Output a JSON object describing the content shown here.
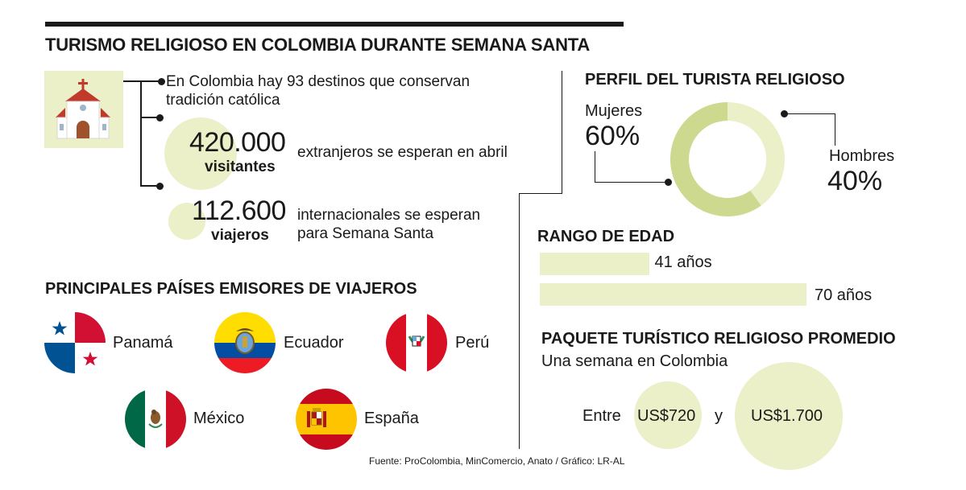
{
  "header": {
    "title": "TURISMO RELIGIOSO EN COLOMBIA DURANTE SEMANA SANTA"
  },
  "intro": {
    "fact_text": "En Colombia hay 93 destinos que conservan tradición católica",
    "stat1_value": "420.000",
    "stat1_unit": "visitantes",
    "stat1_desc": "extranjeros se esperan en abril",
    "stat2_value": "112.600",
    "stat2_unit": "viajeros",
    "stat2_desc": "internacionales se esperan para Semana Santa"
  },
  "countries": {
    "heading": "PRINCIPALES PAÍSES EMISORES DE VIAJEROS",
    "items": [
      {
        "name": "Panamá",
        "icon": "panama-flag-icon"
      },
      {
        "name": "Ecuador",
        "icon": "ecuador-flag-icon"
      },
      {
        "name": "Perú",
        "icon": "peru-flag-icon"
      },
      {
        "name": "México",
        "icon": "mexico-flag-icon"
      },
      {
        "name": "España",
        "icon": "spain-flag-icon"
      }
    ]
  },
  "profile": {
    "heading": "PERFIL DEL TURISTA RELIGIOSO",
    "women_label": "Mujeres",
    "women_pct": "60%",
    "men_label": "Hombres",
    "men_pct": "40%",
    "colors": {
      "women": "#ccd98f",
      "men": "#ebf0c8"
    }
  },
  "chart_data": {
    "type": "pie",
    "categories": [
      "Mujeres",
      "Hombres"
    ],
    "values": [
      60,
      40
    ]
  },
  "age": {
    "heading": "RANGO DE EDAD",
    "min_label": "41 años",
    "max_label": "70 años",
    "min_value": 41,
    "max_value": 70
  },
  "package": {
    "heading": "PAQUETE TURÍSTICO RELIGIOSO PROMEDIO",
    "subheading": "Una semana en Colombia",
    "between": "Entre",
    "low": "US$720",
    "and": "y",
    "high": "US$1.700"
  },
  "footer": {
    "source": "Fuente: ProColombia, MinComercio, Anato / Gráfico: LR-AL"
  },
  "colors": {
    "accent_light": "#ebf0c8",
    "accent_dark": "#ccd98f",
    "text": "#1a1a1a"
  }
}
